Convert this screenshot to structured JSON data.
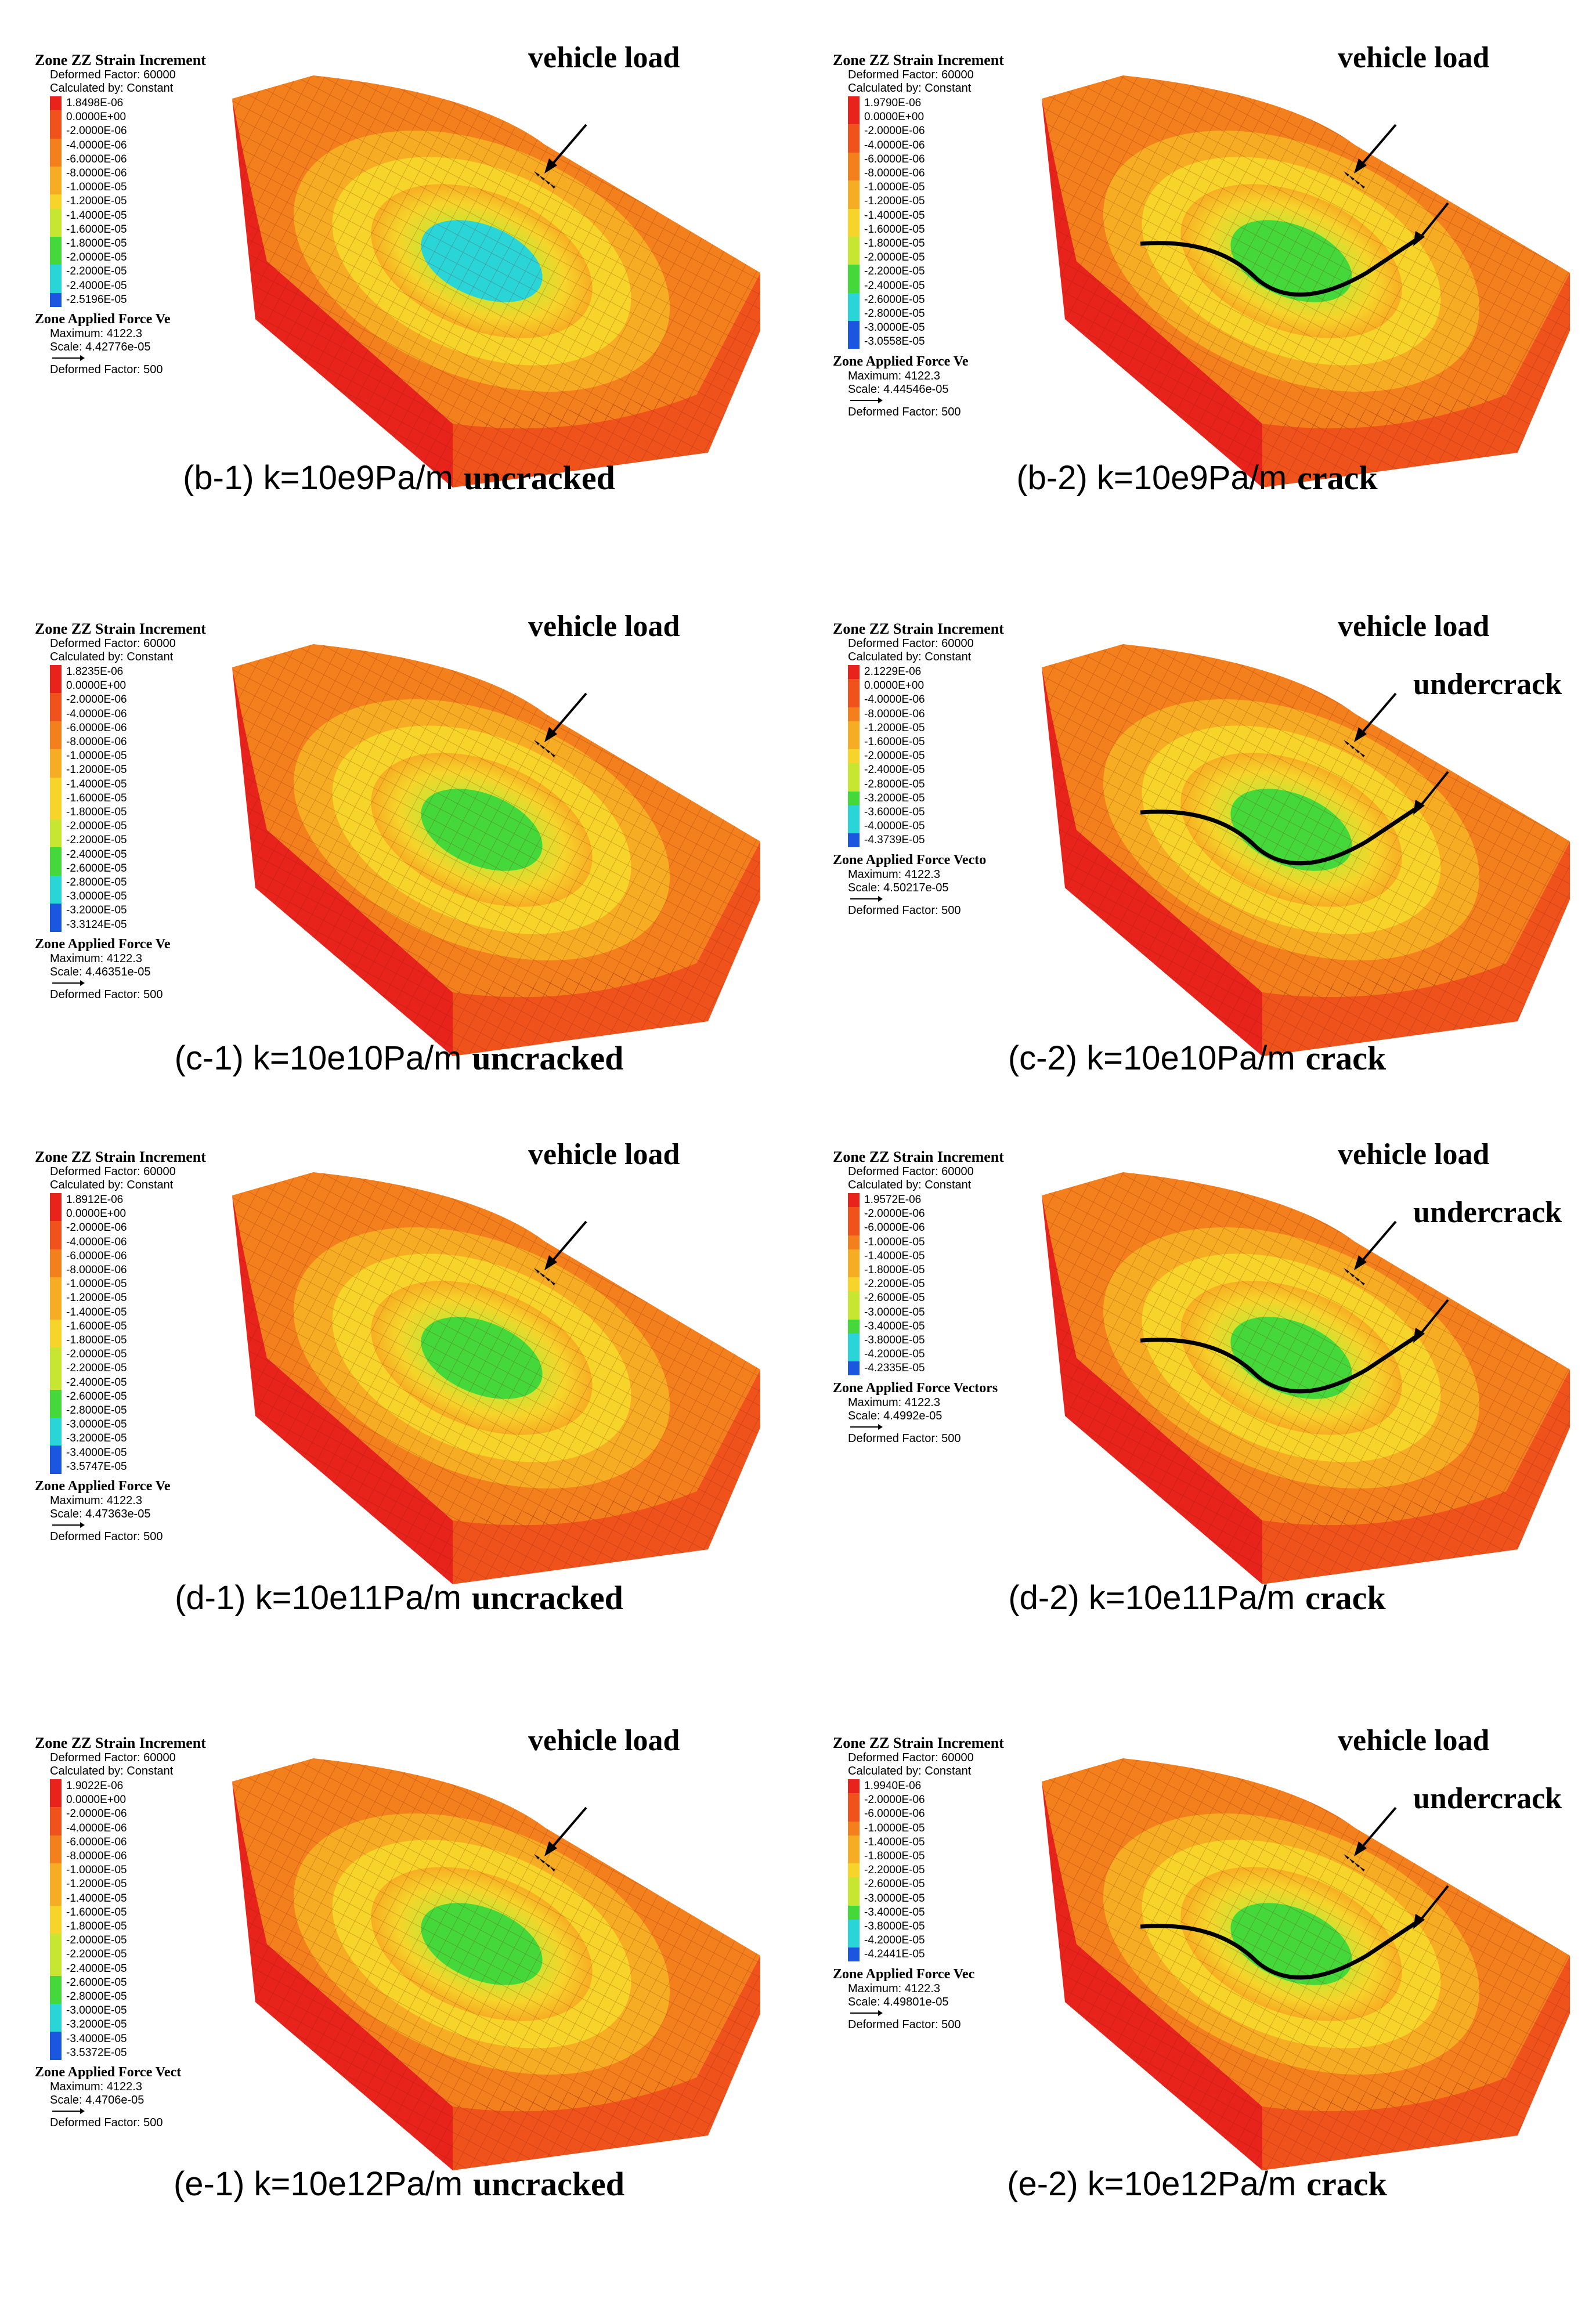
{
  "colors": {
    "red": "#e8231b",
    "orange_red": "#f0521c",
    "orange": "#f37f1d",
    "orange_yellow": "#f7ad23",
    "yellow": "#f6d42a",
    "yellow_green": "#c6e632",
    "green": "#44d83a",
    "cyan": "#2ad5d8",
    "blue": "#1a56e0",
    "crack_line": "#000000"
  },
  "panels": [
    {
      "id": "b-1",
      "caption": {
        "tag": "(b-1) k=10e9Pa/m",
        "state": "uncracked"
      },
      "legend": {
        "title": "Zone ZZ Strain Increment",
        "deformed": "Deformed Factor: 60000",
        "calculated": "Calculated by: Constant",
        "values": [
          "1.8498E-06",
          "0.0000E+00",
          "-2.0000E-06",
          "-4.0000E-06",
          "-6.0000E-06",
          "-8.0000E-06",
          "-1.0000E-05",
          "-1.2000E-05",
          "-1.4000E-05",
          "-1.6000E-05",
          "-1.8000E-05",
          "-2.0000E-05",
          "-2.2000E-05",
          "-2.4000E-05",
          "-2.5196E-05"
        ],
        "force_title": "Zone Applied Force Ve",
        "maximum": "Maximum: 4122.3",
        "scale": "Scale: 4.42776e-05",
        "force_deformed": "Deformed Factor: 500"
      },
      "annotations": {
        "vehicle": "vehicle load"
      }
    },
    {
      "id": "b-2",
      "caption": {
        "tag": "(b-2) k=10e9Pa/m",
        "state": "crack"
      },
      "legend": {
        "title": "Zone ZZ Strain Increment",
        "deformed": "Deformed Factor: 60000",
        "calculated": "Calculated by: Constant",
        "values": [
          "1.9790E-06",
          "0.0000E+00",
          "-2.0000E-06",
          "-4.0000E-06",
          "-6.0000E-06",
          "-8.0000E-06",
          "-1.0000E-05",
          "-1.2000E-05",
          "-1.4000E-05",
          "-1.6000E-05",
          "-1.8000E-05",
          "-2.0000E-05",
          "-2.2000E-05",
          "-2.4000E-05",
          "-2.6000E-05",
          "-2.8000E-05",
          "-3.0000E-05",
          "-3.0558E-05"
        ],
        "force_title": "Zone Applied Force Ve",
        "maximum": "Maximum: 4122.3",
        "scale": "Scale: 4.44546e-05",
        "force_deformed": "Deformed Factor: 500"
      },
      "annotations": {
        "vehicle": "vehicle load"
      }
    },
    {
      "id": "c-1",
      "caption": {
        "tag": "(c-1) k=10e10Pa/m",
        "state": "uncracked"
      },
      "legend": {
        "title": "Zone ZZ Strain Increment",
        "deformed": "Deformed Factor: 60000",
        "calculated": "Calculated by: Constant",
        "values": [
          "1.8235E-06",
          "0.0000E+00",
          "-2.0000E-06",
          "-4.0000E-06",
          "-6.0000E-06",
          "-8.0000E-06",
          "-1.0000E-05",
          "-1.2000E-05",
          "-1.4000E-05",
          "-1.6000E-05",
          "-1.8000E-05",
          "-2.0000E-05",
          "-2.2000E-05",
          "-2.4000E-05",
          "-2.6000E-05",
          "-2.8000E-05",
          "-3.0000E-05",
          "-3.2000E-05",
          "-3.3124E-05"
        ],
        "force_title": "Zone Applied Force Ve",
        "maximum": "Maximum: 4122.3",
        "scale": "Scale: 4.46351e-05",
        "force_deformed": "Deformed Factor: 500"
      },
      "annotations": {
        "vehicle": "vehicle load"
      }
    },
    {
      "id": "c-2",
      "caption": {
        "tag": "(c-2) k=10e10Pa/m",
        "state": "crack"
      },
      "legend": {
        "title": "Zone ZZ Strain Increment",
        "deformed": "Deformed Factor: 60000",
        "calculated": "Calculated by: Constant",
        "values": [
          "2.1229E-06",
          "0.0000E+00",
          "-4.0000E-06",
          "-8.0000E-06",
          "-1.2000E-05",
          "-1.6000E-05",
          "-2.0000E-05",
          "-2.4000E-05",
          "-2.8000E-05",
          "-3.2000E-05",
          "-3.6000E-05",
          "-4.0000E-05",
          "-4.3739E-05"
        ],
        "force_title": "Zone Applied Force Vecto",
        "maximum": "Maximum: 4122.3",
        "scale": "Scale: 4.50217e-05",
        "force_deformed": "Deformed Factor: 500"
      },
      "annotations": {
        "vehicle": "vehicle load",
        "undercrack": "undercrack"
      }
    },
    {
      "id": "d-1",
      "caption": {
        "tag": "(d-1) k=10e11Pa/m",
        "state": "uncracked"
      },
      "legend": {
        "title": "Zone ZZ Strain Increment",
        "deformed": "Deformed Factor: 60000",
        "calculated": "Calculated by: Constant",
        "values": [
          "1.8912E-06",
          "0.0000E+00",
          "-2.0000E-06",
          "-4.0000E-06",
          "-6.0000E-06",
          "-8.0000E-06",
          "-1.0000E-05",
          "-1.2000E-05",
          "-1.4000E-05",
          "-1.6000E-05",
          "-1.8000E-05",
          "-2.0000E-05",
          "-2.2000E-05",
          "-2.4000E-05",
          "-2.6000E-05",
          "-2.8000E-05",
          "-3.0000E-05",
          "-3.2000E-05",
          "-3.4000E-05",
          "-3.5747E-05"
        ],
        "force_title": "Zone Applied Force Ve",
        "maximum": "Maximum: 4122.3",
        "scale": "Scale: 4.47363e-05",
        "force_deformed": "Deformed Factor: 500"
      },
      "annotations": {
        "vehicle": "vehicle load"
      }
    },
    {
      "id": "d-2",
      "caption": {
        "tag": "(d-2) k=10e11Pa/m",
        "state": "crack"
      },
      "legend": {
        "title": "Zone ZZ Strain Increment",
        "deformed": "Deformed Factor: 60000",
        "calculated": "Calculated by: Constant",
        "values": [
          "1.9572E-06",
          "-2.0000E-06",
          "-6.0000E-06",
          "-1.0000E-05",
          "-1.4000E-05",
          "-1.8000E-05",
          "-2.2000E-05",
          "-2.6000E-05",
          "-3.0000E-05",
          "-3.4000E-05",
          "-3.8000E-05",
          "-4.2000E-05",
          "-4.2335E-05"
        ],
        "force_title": "Zone Applied Force Vectors",
        "maximum": "Maximum: 4122.3",
        "scale": "Scale: 4.4992e-05",
        "force_deformed": "Deformed Factor: 500"
      },
      "annotations": {
        "vehicle": "vehicle load",
        "undercrack": "undercrack"
      }
    },
    {
      "id": "e-1",
      "caption": {
        "tag": "(e-1) k=10e12Pa/m",
        "state": "uncracked"
      },
      "legend": {
        "title": "Zone ZZ Strain Increment",
        "deformed": "Deformed Factor: 60000",
        "calculated": "Calculated by: Constant",
        "values": [
          "1.9022E-06",
          "0.0000E+00",
          "-2.0000E-06",
          "-4.0000E-06",
          "-6.0000E-06",
          "-8.0000E-06",
          "-1.0000E-05",
          "-1.2000E-05",
          "-1.4000E-05",
          "-1.6000E-05",
          "-1.8000E-05",
          "-2.0000E-05",
          "-2.2000E-05",
          "-2.4000E-05",
          "-2.6000E-05",
          "-2.8000E-05",
          "-3.0000E-05",
          "-3.2000E-05",
          "-3.4000E-05",
          "-3.5372E-05"
        ],
        "force_title": "Zone Applied Force Vect",
        "maximum": "Maximum: 4122.3",
        "scale": "Scale: 4.4706e-05",
        "force_deformed": "Deformed Factor: 500"
      },
      "annotations": {
        "vehicle": "vehicle load"
      }
    },
    {
      "id": "e-2",
      "caption": {
        "tag": "(e-2) k=10e12Pa/m",
        "state": "crack"
      },
      "legend": {
        "title": "Zone ZZ Strain Increment",
        "deformed": "Deformed Factor: 60000",
        "calculated": "Calculated by: Constant",
        "values": [
          "1.9940E-06",
          "-2.0000E-06",
          "-6.0000E-06",
          "-1.0000E-05",
          "-1.4000E-05",
          "-1.8000E-05",
          "-2.2000E-05",
          "-2.6000E-05",
          "-3.0000E-05",
          "-3.4000E-05",
          "-3.8000E-05",
          "-4.2000E-05",
          "-4.2441E-05"
        ],
        "force_title": "Zone Applied Force Vec",
        "maximum": "Maximum: 4122.3",
        "scale": "Scale: 4.49801e-05",
        "force_deformed": "Deformed Factor: 500"
      },
      "annotations": {
        "vehicle": "vehicle load",
        "undercrack": "undercrack"
      }
    }
  ]
}
